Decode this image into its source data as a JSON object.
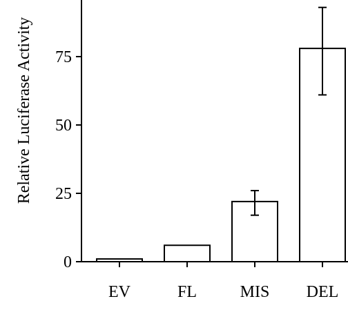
{
  "chart_data": {
    "type": "bar",
    "title": "",
    "xlabel": "",
    "ylabel": "Relative Luciferase Activity",
    "categories": [
      "EV",
      "FL",
      "MIS",
      "DEL"
    ],
    "values": [
      1,
      6,
      22,
      78
    ],
    "error_low": [
      null,
      null,
      17,
      61
    ],
    "error_high": [
      null,
      null,
      26,
      93
    ],
    "yticks": [
      0,
      25,
      50,
      75
    ],
    "ylim": [
      0,
      95
    ],
    "grid": false,
    "legend": "none",
    "bar_fill": "#ffffff",
    "bar_stroke": "#000000"
  }
}
